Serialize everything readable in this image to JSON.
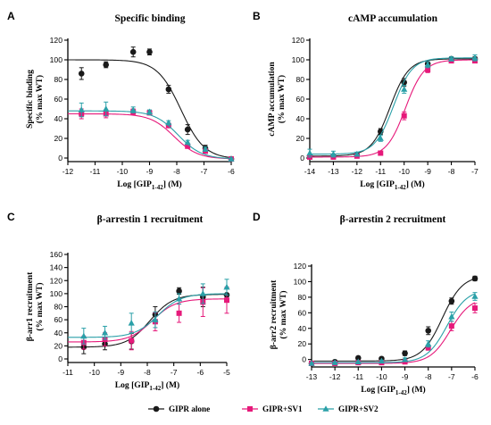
{
  "legend": [
    {
      "label": "GIPR alone",
      "color": "#1a1a1a",
      "marker": "circle"
    },
    {
      "label": "GIPR+SV1",
      "color": "#e6197a",
      "marker": "square"
    },
    {
      "label": "GIPR+SV2",
      "color": "#2aa0a8",
      "marker": "triangle"
    }
  ],
  "chart_data": [
    {
      "letter": "A",
      "type": "scatter",
      "title": "Specific binding",
      "ylabel_line1": "Specific binding",
      "ylabel_line2": "(% max WT)",
      "xlabel_main": "Log [GIP",
      "xlabel_sub": "1-42",
      "xlabel_end": "] (M)",
      "xlim": [
        -12,
        -6
      ],
      "ylim": [
        0,
        120
      ],
      "xticks": [
        -12,
        -11,
        -10,
        -9,
        -8,
        -7,
        -6
      ],
      "yticks": [
        0,
        20,
        40,
        60,
        80,
        100,
        120
      ],
      "series": [
        {
          "name": "GIPR alone",
          "color": "#1a1a1a",
          "marker": "circle",
          "x": [
            -11.5,
            -10.6,
            -9.6,
            -9.0,
            -8.3,
            -7.6,
            -6.95,
            -6.0
          ],
          "y": [
            86,
            95,
            108,
            108,
            70,
            29,
            10,
            -1
          ],
          "err": [
            6,
            3,
            5,
            3,
            4,
            5,
            3,
            1
          ],
          "fit": {
            "bottom": -1,
            "top": 100,
            "logec50": -7.85,
            "hill": 1.0
          }
        },
        {
          "name": "GIPR+SV1",
          "color": "#e6197a",
          "marker": "square",
          "x": [
            -11.5,
            -10.6,
            -9.6,
            -9.0,
            -8.3,
            -7.6,
            -6.95,
            -6.0
          ],
          "y": [
            45,
            45,
            47,
            46,
            33,
            12,
            7,
            -1
          ],
          "err": [
            5,
            4,
            3,
            2,
            2,
            2,
            2,
            1
          ],
          "fit": {
            "bottom": -1,
            "top": 45,
            "logec50": -8.1,
            "hill": 1.0
          }
        },
        {
          "name": "GIPR+SV2",
          "color": "#2aa0a8",
          "marker": "triangle",
          "x": [
            -11.5,
            -10.6,
            -9.6,
            -9.0,
            -8.3,
            -7.6,
            -6.95,
            -6.0
          ],
          "y": [
            49,
            50,
            49,
            47,
            36,
            16,
            9,
            -1
          ],
          "err": [
            7,
            7,
            3,
            2,
            2,
            2,
            2,
            1
          ],
          "fit": {
            "bottom": -1,
            "top": 48,
            "logec50": -7.95,
            "hill": 1.0
          }
        }
      ]
    },
    {
      "letter": "B",
      "type": "scatter",
      "title": "cAMP accumulation",
      "ylabel_line1": "cAMP accumulation",
      "ylabel_line2": "(% max WT)",
      "xlabel_main": "Log [GIP",
      "xlabel_sub": "1-42",
      "xlabel_end": "] (M)",
      "xlim": [
        -14,
        -7
      ],
      "ylim": [
        0,
        120
      ],
      "xticks": [
        -14,
        -13,
        -12,
        -11,
        -10,
        -9,
        -8,
        -7
      ],
      "yticks": [
        0,
        20,
        40,
        60,
        80,
        100,
        120
      ],
      "series": [
        {
          "name": "GIPR alone",
          "color": "#1a1a1a",
          "marker": "circle",
          "x": [
            -14,
            -13,
            -12,
            -11,
            -10,
            -9,
            -8,
            -7
          ],
          "y": [
            2,
            2,
            3,
            27,
            77,
            96,
            101,
            101
          ],
          "err": [
            2,
            2,
            2,
            3,
            4,
            2,
            2,
            2
          ],
          "fit": {
            "bottom": 2,
            "top": 101,
            "logec50": -10.6,
            "hill": 1.1
          }
        },
        {
          "name": "GIPR+SV1",
          "color": "#e6197a",
          "marker": "square",
          "x": [
            -14,
            -13,
            -12,
            -11,
            -10,
            -9,
            -8,
            -7
          ],
          "y": [
            1,
            1,
            2,
            5,
            43,
            90,
            99,
            99
          ],
          "err": [
            1,
            1,
            1,
            2,
            4,
            3,
            2,
            2
          ],
          "fit": {
            "bottom": 1,
            "top": 100,
            "logec50": -9.95,
            "hill": 1.1
          }
        },
        {
          "name": "GIPR+SV2",
          "color": "#2aa0a8",
          "marker": "triangle",
          "x": [
            -14,
            -13,
            -12,
            -11,
            -10,
            -9,
            -8,
            -7
          ],
          "y": [
            5,
            4,
            4,
            20,
            70,
            95,
            101,
            102
          ],
          "err": [
            4,
            3,
            2,
            3,
            4,
            3,
            2,
            3
          ],
          "fit": {
            "bottom": 4,
            "top": 102,
            "logec50": -10.45,
            "hill": 1.1
          }
        }
      ]
    },
    {
      "letter": "C",
      "type": "scatter",
      "title": "β-arrestin 1 recruitment",
      "ylabel_line1": "β-arr1 recruitment",
      "ylabel_line2": "(% max WT)",
      "xlabel_main": "Log [GIP",
      "xlabel_sub": "1-42",
      "xlabel_end": "] (M)",
      "xlim": [
        -11,
        -5
      ],
      "ylim": [
        0,
        160
      ],
      "xticks": [
        -11,
        -10,
        -9,
        -8,
        -7,
        -6,
        -5
      ],
      "yticks": [
        0,
        20,
        40,
        60,
        80,
        100,
        120,
        140,
        160
      ],
      "series": [
        {
          "name": "GIPR alone",
          "color": "#1a1a1a",
          "marker": "circle",
          "x": [
            -10.4,
            -9.6,
            -8.6,
            -7.7,
            -6.8,
            -5.9,
            -5.0
          ],
          "y": [
            18,
            23,
            27,
            68,
            104,
            95,
            98
          ],
          "err": [
            10,
            9,
            12,
            12,
            5,
            15,
            10
          ],
          "fit": {
            "bottom": 18,
            "top": 99,
            "logec50": -7.9,
            "hill": 1.0
          }
        },
        {
          "name": "GIPR+SV1",
          "color": "#e6197a",
          "marker": "square",
          "x": [
            -10.4,
            -9.6,
            -8.6,
            -7.7,
            -6.8,
            -5.9,
            -5.0
          ],
          "y": [
            25,
            30,
            28,
            57,
            70,
            87,
            90
          ],
          "err": [
            10,
            10,
            14,
            14,
            14,
            22,
            20
          ],
          "fit": {
            "bottom": 26,
            "top": 92,
            "logec50": -7.8,
            "hill": 1.0
          }
        },
        {
          "name": "GIPR+SV2",
          "color": "#2aa0a8",
          "marker": "triangle",
          "x": [
            -10.4,
            -9.6,
            -8.6,
            -7.7,
            -6.8,
            -5.9,
            -5.0
          ],
          "y": [
            35,
            40,
            55,
            60,
            92,
            100,
            110
          ],
          "err": [
            12,
            10,
            15,
            12,
            8,
            15,
            12
          ],
          "fit": {
            "bottom": 33,
            "top": 100,
            "logec50": -7.6,
            "hill": 1.0
          }
        }
      ]
    },
    {
      "letter": "D",
      "type": "scatter",
      "title": "β-arrestin 2 recruitment",
      "ylabel_line1": "β-arr2 recruitment",
      "ylabel_line2": "(% max WT)",
      "xlabel_main": "Log [GIP",
      "xlabel_sub": "1-42",
      "xlabel_end": "] (M)",
      "xlim": [
        -13,
        -6
      ],
      "ylim": [
        -5,
        120
      ],
      "xticks": [
        -13,
        -12,
        -11,
        -10,
        -9,
        -8,
        -7,
        -6
      ],
      "yticks": [
        0,
        20,
        40,
        60,
        80,
        100,
        120
      ],
      "series": [
        {
          "name": "GIPR alone",
          "color": "#1a1a1a",
          "marker": "circle",
          "x": [
            -13,
            -12,
            -11,
            -10,
            -9,
            -8,
            -7,
            -6
          ],
          "y": [
            -5,
            -3,
            2,
            1,
            8,
            37,
            75,
            104
          ],
          "err": [
            1,
            1,
            2,
            2,
            3,
            5,
            4,
            3
          ],
          "fit": {
            "bottom": -2,
            "top": 108,
            "logec50": -7.4,
            "hill": 1.0
          }
        },
        {
          "name": "GIPR+SV1",
          "color": "#e6197a",
          "marker": "square",
          "x": [
            -13,
            -12,
            -11,
            -10,
            -9,
            -8,
            -7,
            -6
          ],
          "y": [
            -5,
            -5,
            -4,
            -4,
            -3,
            15,
            43,
            66
          ],
          "err": [
            1,
            1,
            1,
            1,
            2,
            3,
            6,
            6
          ],
          "fit": {
            "bottom": -5,
            "top": 80,
            "logec50": -7.05,
            "hill": 1.0
          }
        },
        {
          "name": "GIPR+SV2",
          "color": "#2aa0a8",
          "marker": "triangle",
          "x": [
            -13,
            -12,
            -11,
            -10,
            -9,
            -8,
            -7,
            -6
          ],
          "y": [
            -5,
            -4,
            -3,
            -2,
            0,
            20,
            55,
            81
          ],
          "err": [
            1,
            1,
            1,
            1,
            2,
            4,
            6,
            5
          ],
          "fit": {
            "bottom": -4,
            "top": 90,
            "logec50": -7.2,
            "hill": 1.0
          }
        }
      ]
    }
  ]
}
